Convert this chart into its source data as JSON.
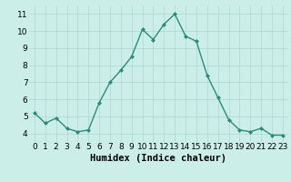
{
  "x": [
    0,
    1,
    2,
    3,
    4,
    5,
    6,
    7,
    8,
    9,
    10,
    11,
    12,
    13,
    14,
    15,
    16,
    17,
    18,
    19,
    20,
    21,
    22,
    23
  ],
  "y": [
    5.2,
    4.6,
    4.9,
    4.3,
    4.1,
    4.2,
    5.8,
    7.0,
    7.7,
    8.5,
    10.1,
    9.5,
    10.4,
    11.0,
    9.7,
    9.4,
    7.4,
    6.1,
    4.8,
    4.2,
    4.1,
    4.3,
    3.9,
    3.9
  ],
  "line_color": "#2e8b7a",
  "marker": "D",
  "marker_size": 2.0,
  "bg_color": "#cceee8",
  "grid_color": "#aad8d0",
  "xlabel": "Humidex (Indice chaleur)",
  "xlim": [
    -0.5,
    23.5
  ],
  "ylim": [
    3.5,
    11.5
  ],
  "yticks": [
    4,
    5,
    6,
    7,
    8,
    9,
    10,
    11
  ],
  "xticks": [
    0,
    1,
    2,
    3,
    4,
    5,
    6,
    7,
    8,
    9,
    10,
    11,
    12,
    13,
    14,
    15,
    16,
    17,
    18,
    19,
    20,
    21,
    22,
    23
  ],
  "tick_label_fontsize": 6.5,
  "xlabel_fontsize": 7.5,
  "linewidth": 1.0
}
